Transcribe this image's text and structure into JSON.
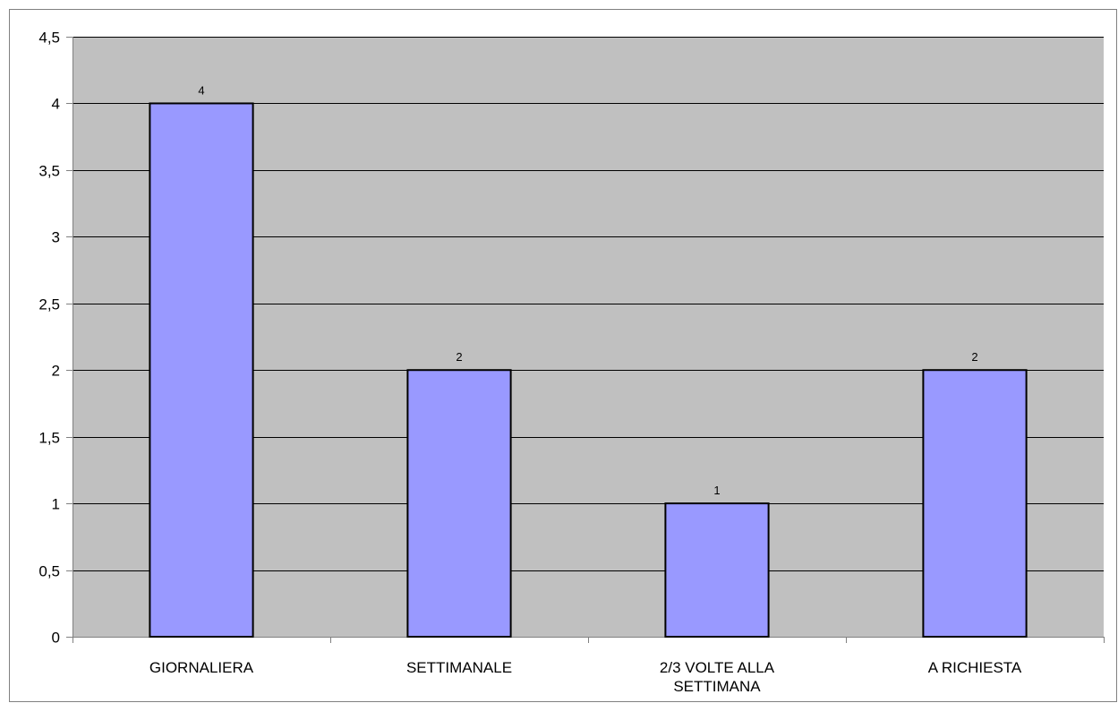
{
  "chart_data": {
    "type": "bar",
    "categories": [
      "GIORNALIERA",
      "SETTIMANALE",
      "2/3 VOLTE ALLA SETTIMANA",
      "A RICHIESTA"
    ],
    "category_lines": [
      [
        "GIORNALIERA"
      ],
      [
        "SETTIMANALE"
      ],
      [
        "2/3 VOLTE ALLA",
        "SETTIMANA"
      ],
      [
        "A RICHIESTA"
      ]
    ],
    "values": [
      4,
      2,
      1,
      2
    ],
    "data_labels": [
      "4",
      "2",
      "1",
      "2"
    ],
    "ylim": [
      0,
      4.5
    ],
    "yticks": [
      0,
      0.5,
      1,
      1.5,
      2,
      2.5,
      3,
      3.5,
      4,
      4.5
    ],
    "ytick_labels": [
      "0",
      "0,5",
      "1",
      "1,5",
      "2",
      "2,5",
      "3",
      "3,5",
      "4",
      "4,5"
    ],
    "title": "",
    "xlabel": "",
    "ylabel": "",
    "grid": true,
    "legend": "none",
    "colors": {
      "bar_fill": "#9999ff",
      "bar_stroke": "#000000",
      "plot_background": "#c0c0c0",
      "grid": "#000000"
    }
  }
}
